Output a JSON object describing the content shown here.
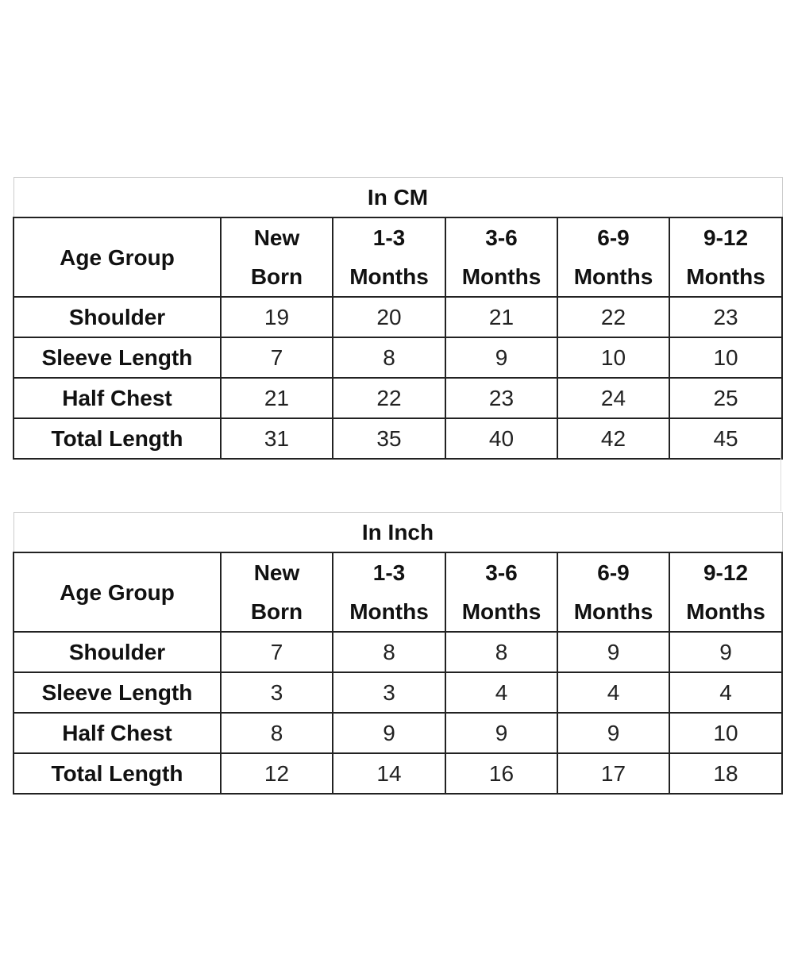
{
  "tables": [
    {
      "title": "In CM",
      "header": [
        "Age Group",
        "New Born",
        "1-3 Months",
        "3-6 Months",
        "6-9 Months",
        "9-12 Months"
      ],
      "rows": [
        {
          "label": "Shoulder",
          "values": [
            "19",
            "20",
            "21",
            "22",
            "23"
          ]
        },
        {
          "label": "Sleeve Length",
          "values": [
            "7",
            "8",
            "9",
            "10",
            "10"
          ]
        },
        {
          "label": "Half Chest",
          "values": [
            "21",
            "22",
            "23",
            "24",
            "25"
          ]
        },
        {
          "label": "Total Length",
          "values": [
            "31",
            "35",
            "40",
            "42",
            "45"
          ]
        }
      ]
    },
    {
      "title": "In Inch",
      "header": [
        "Age Group",
        "New Born",
        "1-3 Months",
        "3-6 Months",
        "6-9 Months",
        "9-12 Months"
      ],
      "rows": [
        {
          "label": "Shoulder",
          "values": [
            "7",
            "8",
            "8",
            "9",
            "9"
          ]
        },
        {
          "label": "Sleeve Length",
          "values": [
            "3",
            "3",
            "4",
            "4",
            "4"
          ]
        },
        {
          "label": "Half Chest",
          "values": [
            "8",
            "9",
            "9",
            "9",
            "10"
          ]
        },
        {
          "label": "Total Length",
          "values": [
            "12",
            "14",
            "16",
            "17",
            "18"
          ]
        }
      ]
    }
  ]
}
